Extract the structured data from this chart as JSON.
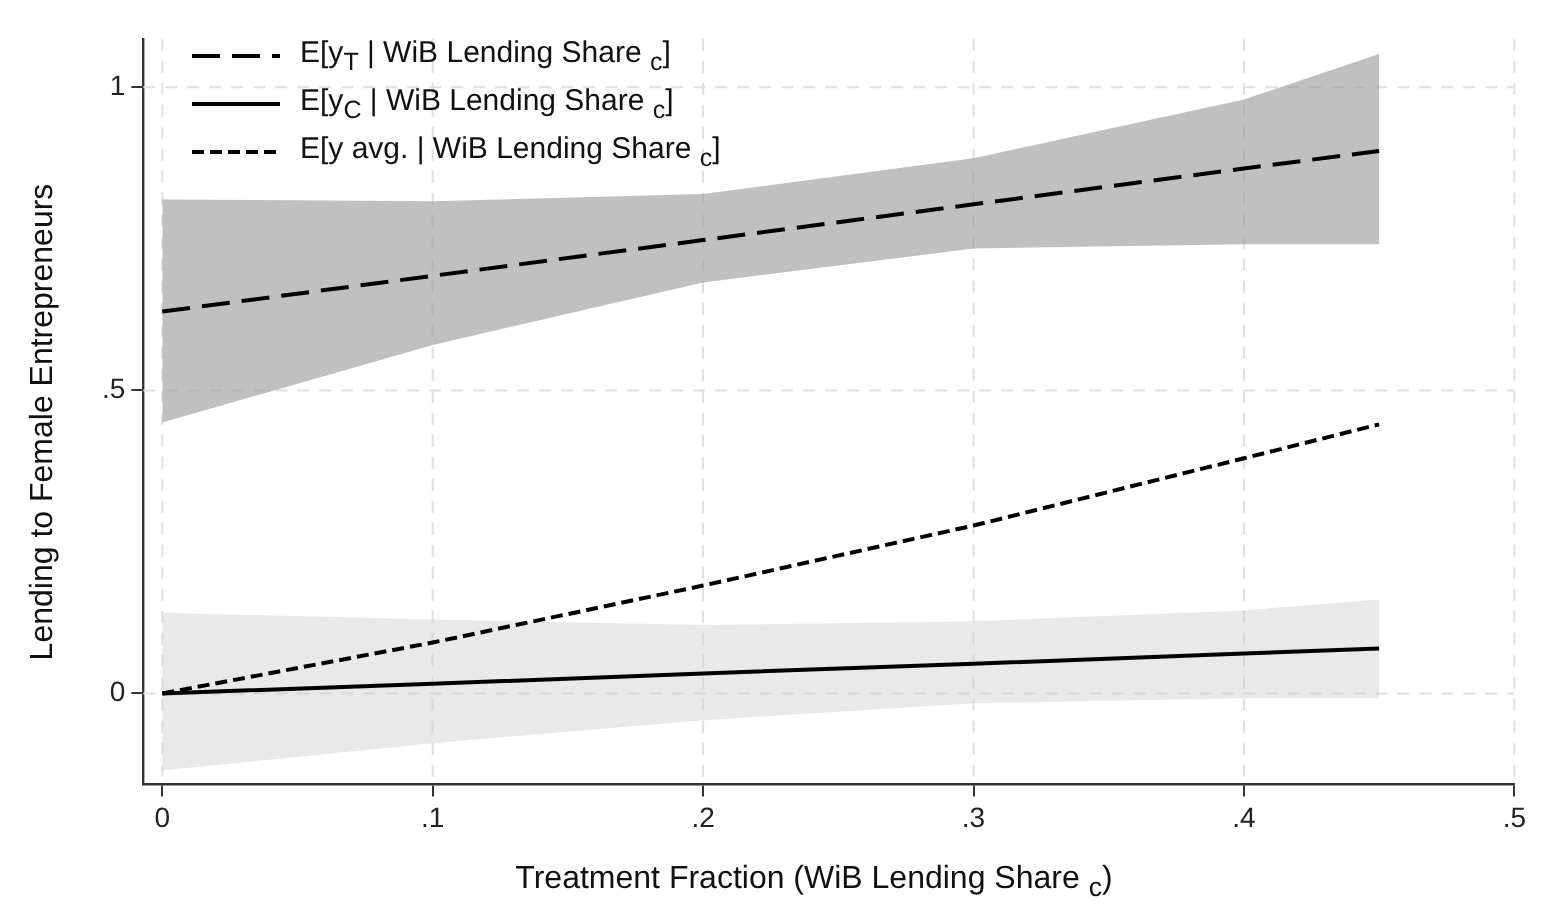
{
  "chart_data": {
    "type": "line",
    "xlabel": "Treatment Fraction (WiB Lending Share $_{c}$)",
    "ylabel": "Lending to Female Entrepreneurs",
    "x": [
      0,
      0.1,
      0.2,
      0.3,
      0.4,
      0.45
    ],
    "series": [
      {
        "name": "E[y$_{T}$ | WiB Lending Share $_{c}$]",
        "color": "#000000",
        "line_style": "dashed",
        "values": [
          0.63,
          0.689,
          0.748,
          0.807,
          0.866,
          0.895
        ],
        "lower": [
          0.447,
          0.575,
          0.678,
          0.734,
          0.741,
          0.741
        ],
        "upper": [
          0.815,
          0.812,
          0.824,
          0.883,
          0.98,
          1.055
        ]
      },
      {
        "name": "E[y$_{C}$ | WiB Lending Share $_{c}$]",
        "color": "#000000",
        "line_style": "solid",
        "values": [
          0,
          0.016,
          0.033,
          0.049,
          0.066,
          0.074
        ],
        "lower": [
          -0.127,
          -0.082,
          -0.044,
          -0.016,
          -0.008,
          -0.008
        ],
        "upper": [
          0.133,
          0.122,
          0.113,
          0.119,
          0.137,
          0.155
        ]
      },
      {
        "name": "E[y avg. | WiB Lending Share $_{c}$]",
        "color": "#000000",
        "line_style": "dashed",
        "values": [
          0,
          0.084,
          0.178,
          0.277,
          0.388,
          0.444
        ]
      }
    ],
    "xlim": [
      -0.007,
      0.5
    ],
    "xticks": [
      0,
      {
        "value": 0.1,
        "label": ".1"
      },
      {
        "value": 0.2,
        "label": ".2"
      },
      {
        "value": 0.3,
        "label": ".3"
      },
      {
        "value": 0.4,
        "label": ".4"
      },
      {
        "value": 0.5,
        "label": ".5"
      }
    ],
    "ylim": [
      -0.15,
      1.08
    ],
    "yticks": [
      0,
      {
        "value": 0.5,
        "label": ".5"
      },
      1
    ],
    "grid": true,
    "legend": "top left",
    "marker": "none"
  }
}
